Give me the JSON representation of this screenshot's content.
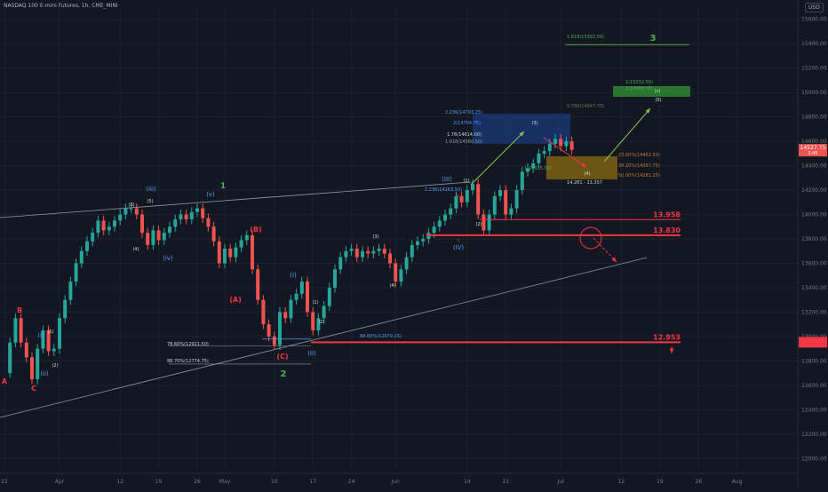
{
  "header": {
    "title": "NASDAQ 100 E-mini Futures, 1h, CME_MINI",
    "currency": "USD"
  },
  "price_tag": {
    "value": "14527.75",
    "sub": "2:45"
  },
  "chart_data": {
    "type": "line",
    "title": "NASDAQ 100 E-mini Futures, 1h, CME_MINI",
    "xlabel": "",
    "ylabel": "",
    "ylim": [
      11900,
      15700
    ],
    "grid": true,
    "y_ticks": [
      12000,
      12200,
      12400,
      12600,
      12800,
      13000,
      13200,
      13400,
      13600,
      13800,
      14000,
      14200,
      14400,
      14600,
      14800,
      15000,
      15200,
      15400,
      15600
    ],
    "x_ticks": [
      {
        "label": "22",
        "x": 0
      },
      {
        "label": "Apr",
        "x": 10
      },
      {
        "label": "12",
        "x": 21
      },
      {
        "label": "19",
        "x": 28
      },
      {
        "label": "26",
        "x": 35
      },
      {
        "label": "May",
        "x": 40
      },
      {
        "label": "10",
        "x": 49
      },
      {
        "label": "17",
        "x": 56
      },
      {
        "label": "24",
        "x": 63
      },
      {
        "label": "Jun",
        "x": 71
      },
      {
        "label": "14",
        "x": 84
      },
      {
        "label": "21",
        "x": 91
      },
      {
        "label": "Jul",
        "x": 101
      },
      {
        "label": "12",
        "x": 112
      },
      {
        "label": "19",
        "x": 119
      },
      {
        "label": "26",
        "x": 126
      },
      {
        "label": "Aug",
        "x": 133
      }
    ],
    "price_path": [
      [
        0,
        12700
      ],
      [
        1,
        12950
      ],
      [
        2,
        13150
      ],
      [
        3,
        12950
      ],
      [
        4,
        12830
      ],
      [
        5,
        12650
      ],
      [
        6,
        12900
      ],
      [
        7,
        13050
      ],
      [
        8,
        12880
      ],
      [
        9,
        12900
      ],
      [
        10,
        13150
      ],
      [
        11,
        13300
      ],
      [
        12,
        13450
      ],
      [
        13,
        13600
      ],
      [
        14,
        13700
      ],
      [
        15,
        13780
      ],
      [
        16,
        13850
      ],
      [
        17,
        13950
      ],
      [
        18,
        13870
      ],
      [
        19,
        13900
      ],
      [
        20,
        13950
      ],
      [
        21,
        14000
      ],
      [
        22,
        14050
      ],
      [
        23,
        14050
      ],
      [
        24,
        14000
      ],
      [
        25,
        13850
      ],
      [
        26,
        13750
      ],
      [
        27,
        13870
      ],
      [
        28,
        13790
      ],
      [
        29,
        13850
      ],
      [
        30,
        13900
      ],
      [
        31,
        13960
      ],
      [
        32,
        14000
      ],
      [
        33,
        13960
      ],
      [
        34,
        14020
      ],
      [
        35,
        14050
      ],
      [
        36,
        13970
      ],
      [
        37,
        13900
      ],
      [
        38,
        13780
      ],
      [
        39,
        13600
      ],
      [
        40,
        13720
      ],
      [
        41,
        13650
      ],
      [
        42,
        13730
      ],
      [
        43,
        13790
      ],
      [
        44,
        13830
      ],
      [
        45,
        13550
      ],
      [
        46,
        13300
      ],
      [
        47,
        13100
      ],
      [
        48,
        13000
      ],
      [
        49,
        12930
      ],
      [
        50,
        13200
      ],
      [
        51,
        13150
      ],
      [
        52,
        13300
      ],
      [
        53,
        13350
      ],
      [
        54,
        13450
      ],
      [
        55,
        13200
      ],
      [
        56,
        13050
      ],
      [
        57,
        13150
      ],
      [
        58,
        13250
      ],
      [
        59,
        13400
      ],
      [
        60,
        13550
      ],
      [
        61,
        13650
      ],
      [
        62,
        13700
      ],
      [
        63,
        13720
      ],
      [
        64,
        13650
      ],
      [
        65,
        13700
      ],
      [
        66,
        13680
      ],
      [
        67,
        13700
      ],
      [
        68,
        13720
      ],
      [
        69,
        13680
      ],
      [
        70,
        13600
      ],
      [
        71,
        13450
      ],
      [
        72,
        13550
      ],
      [
        73,
        13650
      ],
      [
        74,
        13750
      ],
      [
        75,
        13780
      ],
      [
        76,
        13800
      ],
      [
        77,
        13850
      ],
      [
        78,
        13900
      ],
      [
        79,
        13950
      ],
      [
        80,
        14000
      ],
      [
        81,
        14050
      ],
      [
        82,
        14150
      ],
      [
        83,
        14100
      ],
      [
        84,
        14200
      ],
      [
        85,
        14250
      ],
      [
        86,
        14000
      ],
      [
        87,
        13870
      ],
      [
        88,
        14000
      ],
      [
        89,
        14150
      ],
      [
        90,
        14200
      ],
      [
        91,
        14000
      ],
      [
        92,
        14050
      ],
      [
        93,
        14200
      ],
      [
        94,
        14350
      ],
      [
        95,
        14380
      ],
      [
        96,
        14420
      ],
      [
        97,
        14500
      ],
      [
        98,
        14520
      ],
      [
        99,
        14580
      ],
      [
        100,
        14620
      ],
      [
        101,
        14560
      ],
      [
        102,
        14600
      ],
      [
        103,
        14530
      ]
    ],
    "horizontal_levels": [
      {
        "label": "13.958",
        "value": 13958,
        "color": "#f23645"
      },
      {
        "label": "13.830",
        "value": 13830,
        "color": "#f23645"
      },
      {
        "label": "12.953",
        "value": 12953,
        "color": "#f23645"
      }
    ],
    "price_labels": [
      {
        "text": "12.953",
        "color": "#f23645"
      }
    ],
    "fib_labels": [
      {
        "text": "1.618(15392.50)",
        "value": 15392,
        "color": "#4caf50"
      },
      {
        "text": "1(15032.50)",
        "value": 15032,
        "color": "#4caf50"
      },
      {
        "text": "1(14988.00)",
        "value": 14988,
        "color": "#4caf50"
      },
      {
        "text": "0.786(14847.75)",
        "value": 14847,
        "color": "#5d7d5d"
      },
      {
        "text": "2.236(14793.25)",
        "value": 14793,
        "color": "#5b9cf6"
      },
      {
        "text": "2(14704.75)",
        "value": 14704,
        "color": "#5b9cf6"
      },
      {
        "text": "1.76(14614.00)",
        "value": 14614,
        "color": "#d1d4dc"
      },
      {
        "text": "1.618(14560.50)",
        "value": 14560,
        "color": "#9598a1"
      },
      {
        "text": "23.60%(14452.50)",
        "value": 14452,
        "color": "#c77c2e"
      },
      {
        "text": "38.20%(14357.75)",
        "value": 14357,
        "color": "#c77c2e"
      },
      {
        "text": "50.00%(14281.25)",
        "value": 14281,
        "color": "#c77c2e"
      },
      {
        "text": "1(14335.00)",
        "value": 14335,
        "color": "#4caf50"
      },
      {
        "text": "2.236(14163.50)",
        "value": 14163,
        "color": "#5b9cf6"
      },
      {
        "text": "14.281 - 13.357",
        "value": 14240,
        "color": "#d1d4dc"
      },
      {
        "text": "88.60%(12979.25)",
        "value": 12979,
        "color": "#5b9cf6"
      },
      {
        "text": "78.60%(12921.50)",
        "value": 12921,
        "color": "#d1d4dc"
      },
      {
        "text": "88.70%(12774.75)",
        "value": 12774,
        "color": "#d1d4dc"
      }
    ],
    "wave_labels": [
      {
        "text": "A",
        "color": "#f23645"
      },
      {
        "text": "B",
        "color": "#f23645"
      },
      {
        "text": "C",
        "color": "#f23645"
      },
      {
        "text": "(i)",
        "color": "#5b9cf6"
      },
      {
        "text": "(ii)",
        "color": "#5b9cf6"
      },
      {
        "text": "(1)",
        "color": "#c8e6c9"
      },
      {
        "text": "(2)",
        "color": "#c8e6c9"
      },
      {
        "text": "(iii)",
        "color": "#5b9cf6"
      },
      {
        "text": "(3)",
        "color": "#c8e6c9"
      },
      {
        "text": "(4)",
        "color": "#c8e6c9"
      },
      {
        "text": "(5)",
        "color": "#c8e6c9"
      },
      {
        "text": "(iv)",
        "color": "#5b9cf6"
      },
      {
        "text": "(v)",
        "color": "#5b9cf6"
      },
      {
        "text": "1",
        "color": "#4caf50"
      },
      {
        "text": "(B)",
        "color": "#f23645"
      },
      {
        "text": "(A)",
        "color": "#f23645"
      },
      {
        "text": "(C)",
        "color": "#f23645"
      },
      {
        "text": "2",
        "color": "#4caf50"
      },
      {
        "text": "(I)",
        "color": "#5b9cf6"
      },
      {
        "text": "(II)",
        "color": "#5b9cf6"
      },
      {
        "text": "(III)",
        "color": "#5b9cf6"
      },
      {
        "text": "(IV)",
        "color": "#5b9cf6"
      },
      {
        "text": "3",
        "color": "#4caf50"
      },
      {
        "text": "(v)",
        "color": "#c8e6c9"
      },
      {
        "text": "(5)",
        "color": "#c8e6c9"
      },
      {
        "text": "(4)",
        "color": "#c8e6c9"
      },
      {
        "text": "b",
        "color": "#f23645"
      },
      {
        "text": "c",
        "color": "#f23645"
      }
    ]
  },
  "colors": {
    "background": "#131722",
    "grid": "#1e222d",
    "up": "#26a69a",
    "down": "#ef5350",
    "level": "#f23645",
    "fib_green": "#4caf50",
    "fib_blue": "#5b9cf6",
    "fib_orange": "#c77c2e"
  }
}
